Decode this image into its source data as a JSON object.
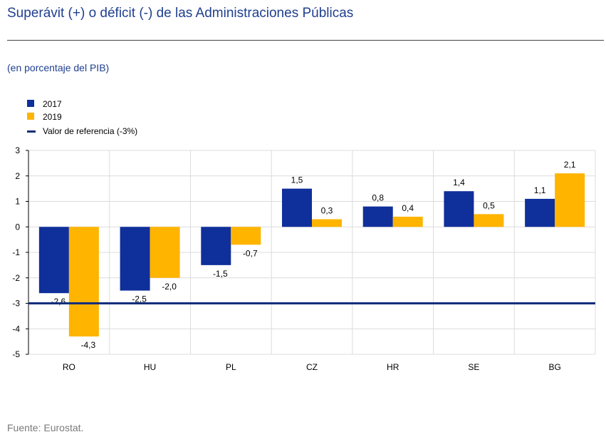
{
  "header": {
    "title": "Superávit (+) o déficit (-) de las Administraciones Públicas",
    "subtitle": "(en porcentaje del PIB)"
  },
  "footer": {
    "source": "Fuente: Eurostat."
  },
  "colors": {
    "s2017": "#0f2f9a",
    "s2019": "#ffb400",
    "reference": "#0f2f7a"
  },
  "chart_data": {
    "type": "bar",
    "categories": [
      "RO",
      "HU",
      "PL",
      "CZ",
      "HR",
      "SE",
      "BG"
    ],
    "series": [
      {
        "name": "2017",
        "values": [
          -2.6,
          -2.5,
          -1.5,
          1.5,
          0.8,
          1.4,
          1.1
        ],
        "labels": [
          "-2,6",
          "-2,5",
          "-1,5",
          "1,5",
          "0,8",
          "1,4",
          "1,1"
        ]
      },
      {
        "name": "2019",
        "values": [
          -4.3,
          -2.0,
          -0.7,
          0.3,
          0.4,
          0.5,
          2.1
        ],
        "labels": [
          "-4,3",
          "-2,0",
          "-0,7",
          "0,3",
          "0,4",
          "0,5",
          "2,1"
        ]
      }
    ],
    "reference_line": {
      "name": "Valor de referencia (-3%)",
      "value": -3
    },
    "ylim": [
      -5,
      3
    ],
    "yticks": [
      3,
      2,
      1,
      0,
      -1,
      -2,
      -3,
      -4,
      -5
    ],
    "ytick_labels": [
      "3",
      "2",
      "1",
      "0",
      "-1",
      "-2",
      "-3",
      "-4",
      "-5"
    ],
    "grid": true,
    "legend": "top-left",
    "xlabel": "",
    "ylabel": ""
  }
}
